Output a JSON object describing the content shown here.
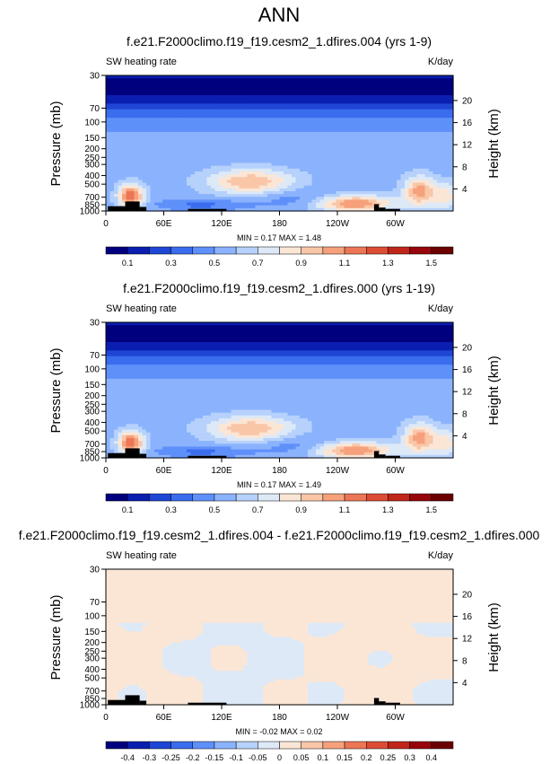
{
  "page_title": "ANN",
  "chart_data": [
    {
      "type": "heatmap",
      "title": "f.e21.F2000climo.f19_f19.cesm2_1.dfires.004 (yrs 1-9)",
      "left_label": "SW heating rate",
      "right_label": "K/day",
      "ylabel": "Pressure (mb)",
      "ylabel_right": "Height (km)",
      "xticks": [
        "0",
        "60E",
        "120E",
        "180",
        "120W",
        "60W"
      ],
      "yticks": [
        "30",
        "70",
        "100",
        "150",
        "200",
        "250",
        "300",
        "400",
        "500",
        "700",
        "850",
        "1000"
      ],
      "height_ticks": [
        "20",
        "16",
        "12",
        "8",
        "4"
      ],
      "stats": "MIN =  0.17  MAX =  1.48",
      "colorbar_labels": [
        "0.1",
        "0.3",
        "0.5",
        "0.7",
        "0.9",
        "1.1",
        "1.3",
        "1.5"
      ],
      "ylim": [
        30,
        1000
      ],
      "xlim": [
        0,
        360
      ]
    },
    {
      "type": "heatmap",
      "title": "f.e21.F2000climo.f19_f19.cesm2_1.dfires.000 (yrs 1-19)",
      "left_label": "SW heating rate",
      "right_label": "K/day",
      "ylabel": "Pressure (mb)",
      "ylabel_right": "Height (km)",
      "xticks": [
        "0",
        "60E",
        "120E",
        "180",
        "120W",
        "60W"
      ],
      "yticks": [
        "30",
        "70",
        "100",
        "150",
        "200",
        "250",
        "300",
        "400",
        "500",
        "700",
        "850",
        "1000"
      ],
      "height_ticks": [
        "20",
        "16",
        "12",
        "8",
        "4"
      ],
      "stats": "MIN =  0.17  MAX =  1.49",
      "colorbar_labels": [
        "0.1",
        "0.3",
        "0.5",
        "0.7",
        "0.9",
        "1.1",
        "1.3",
        "1.5"
      ],
      "ylim": [
        30,
        1000
      ],
      "xlim": [
        0,
        360
      ]
    },
    {
      "type": "heatmap",
      "title": "f.e21.F2000climo.f19_f19.cesm2_1.dfires.004 - f.e21.F2000climo.f19_f19.cesm2_1.dfires.000",
      "left_label": "SW heating rate",
      "right_label": "K/day",
      "ylabel": "Pressure (mb)",
      "ylabel_right": "Height (km)",
      "xticks": [
        "0",
        "60E",
        "120E",
        "180",
        "120W",
        "60W"
      ],
      "yticks": [
        "30",
        "70",
        "100",
        "150",
        "200",
        "250",
        "300",
        "400",
        "500",
        "700",
        "850",
        "1000"
      ],
      "height_ticks": [
        "20",
        "16",
        "12",
        "8",
        "4"
      ],
      "stats": "MIN = -0.02  MAX =  0.02",
      "colorbar_labels": [
        "-0.4",
        "-0.3",
        "-0.25",
        "-0.2",
        "-0.15",
        "-0.1",
        "-0.05",
        "0",
        "0.05",
        "0.1",
        "0.15",
        "0.2",
        "0.25",
        "0.3",
        "0.4"
      ],
      "ylim": [
        30,
        1000
      ],
      "xlim": [
        0,
        360
      ]
    }
  ],
  "colors": {
    "levels15": [
      "#00007f",
      "#0a1fb0",
      "#1f46d4",
      "#3a6cee",
      "#5f90fa",
      "#8bb3fd",
      "#b6d1fb",
      "#dde9f7",
      "#fbe6d6",
      "#f9c6a8",
      "#f6a17c",
      "#ec7655",
      "#dc4c34",
      "#c1261b",
      "#96060b",
      "#6b0000"
    ],
    "levels16": [
      "#00007f",
      "#0a1fb0",
      "#1f46d4",
      "#3a6cee",
      "#5f90fa",
      "#8bb3fd",
      "#b6d1fb",
      "#dde9f7",
      "#fbe6d6",
      "#f9c6a8",
      "#f6a17c",
      "#ec7655",
      "#dc4c34",
      "#c1261b",
      "#96060b",
      "#6b0000"
    ]
  }
}
